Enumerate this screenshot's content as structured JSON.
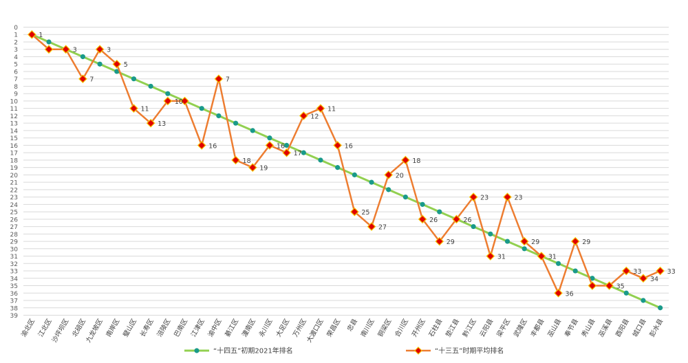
{
  "chart_data": {
    "type": "line",
    "title": "",
    "xlabel": "",
    "ylabel": "",
    "y_reversed": true,
    "ylim": [
      0,
      39
    ],
    "y_ticks": [
      "0",
      "1",
      "2",
      "3",
      "4",
      "5",
      "6",
      "7",
      "8",
      "9",
      "10",
      "11",
      "12",
      "13",
      "14",
      "15",
      "16",
      "17",
      "18",
      "19",
      "20",
      "21",
      "22",
      "23",
      "24",
      "25",
      "26",
      "27",
      "28",
      "29",
      "30",
      "31",
      "32",
      "33",
      "34",
      "35",
      "36",
      "37",
      "38",
      "39"
    ],
    "grid": "horizontal",
    "legend_position": "bottom",
    "categories": [
      "渝北区",
      "江北区",
      "沙坪坝区",
      "北碚区",
      "九龙坡区",
      "南岸区",
      "璧山区",
      "长寿区",
      "涪陵区",
      "巴南区",
      "江津区",
      "渝中区",
      "綦江区",
      "潼南区",
      "永川区",
      "大足区",
      "万州区",
      "大渡口区",
      "荣昌区",
      "忠县",
      "南川区",
      "铜梁区",
      "合川区",
      "开州区",
      "石柱县",
      "垫江县",
      "黔江区",
      "云阳县",
      "梁平区",
      "武隆区",
      "丰都县",
      "巫山县",
      "奉节县",
      "秀山县",
      "巫溪县",
      "酉阳县",
      "城口县",
      "彭水县"
    ],
    "series": [
      {
        "name": "“十四五”初期2021年排名",
        "color": "#92d050",
        "marker_color": "#1a9a8a",
        "marker": "circle",
        "values": [
          1,
          2,
          3,
          4,
          5,
          6,
          7,
          8,
          9,
          10,
          11,
          12,
          13,
          14,
          15,
          16,
          17,
          18,
          19,
          20,
          21,
          22,
          23,
          24,
          25,
          26,
          27,
          28,
          29,
          30,
          31,
          32,
          33,
          34,
          35,
          36,
          37,
          38
        ]
      },
      {
        "name": "“十三五”时期平均排名",
        "color": "#ed7d31",
        "marker_color": "#e00000",
        "marker_edge": "#f5c400",
        "marker": "diamond",
        "values": [
          1,
          3,
          3,
          7,
          3,
          5,
          11,
          13,
          10,
          10,
          16,
          7,
          18,
          19,
          16,
          17,
          12,
          11,
          16,
          25,
          27,
          20,
          18,
          26,
          29,
          26,
          23,
          31,
          23,
          29,
          31,
          36,
          29,
          35,
          35,
          33,
          34,
          33
        ],
        "labels": [
          "1",
          "",
          "3",
          "7",
          "3",
          "5",
          "11",
          "13",
          "10",
          "",
          "16",
          "7",
          "18",
          "19",
          "16",
          "17",
          "12",
          "11",
          "16",
          "25",
          "27",
          "20",
          "18",
          "26",
          "29",
          "26",
          "23",
          "31",
          "23",
          "29",
          "31",
          "36",
          "29",
          "",
          "35",
          "33",
          "34",
          "33"
        ]
      }
    ]
  }
}
